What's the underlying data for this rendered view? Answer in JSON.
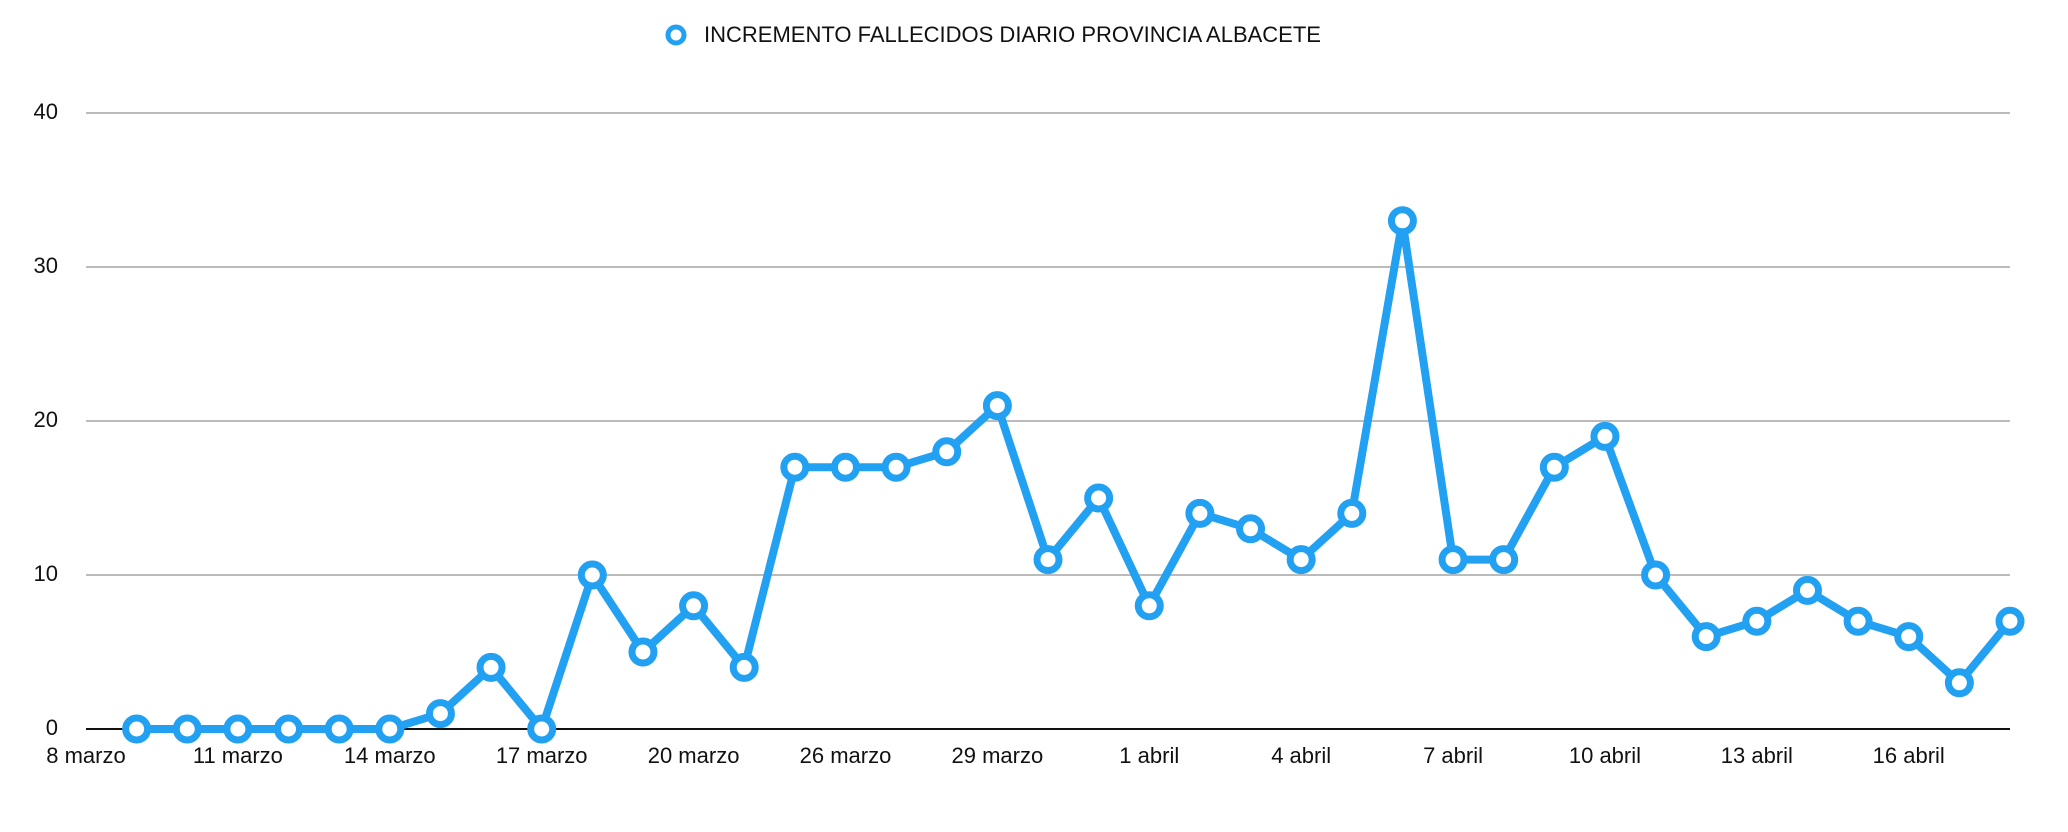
{
  "chart_data": {
    "type": "line",
    "categories": [
      "8 marzo",
      null,
      null,
      "11 marzo",
      null,
      null,
      "14 marzo",
      null,
      null,
      "17 marzo",
      null,
      null,
      "20 marzo",
      null,
      null,
      "26 marzo",
      null,
      null,
      "29 marzo",
      null,
      null,
      "1 abril",
      null,
      null,
      "4 abril",
      null,
      null,
      "7 abril",
      null,
      null,
      "10 abril",
      null,
      null,
      "13 abril",
      null,
      null,
      "16 abril",
      null,
      null
    ],
    "series": [
      {
        "name": "INCREMENTO FALLECIDOS DIARIO PROVINCIA ALBACETE",
        "color": "#22a0f2",
        "values": [
          null,
          0,
          0,
          0,
          0,
          0,
          0,
          1,
          4,
          0,
          10,
          5,
          8,
          4,
          17,
          17,
          17,
          18,
          21,
          11,
          15,
          8,
          14,
          13,
          11,
          14,
          33,
          11,
          11,
          17,
          19,
          10,
          6,
          7,
          9,
          7,
          6,
          3,
          7
        ]
      }
    ],
    "ylim": [
      0,
      40
    ],
    "yticks": [
      0,
      10,
      20,
      30,
      40
    ],
    "grid": true,
    "legend": "top"
  }
}
